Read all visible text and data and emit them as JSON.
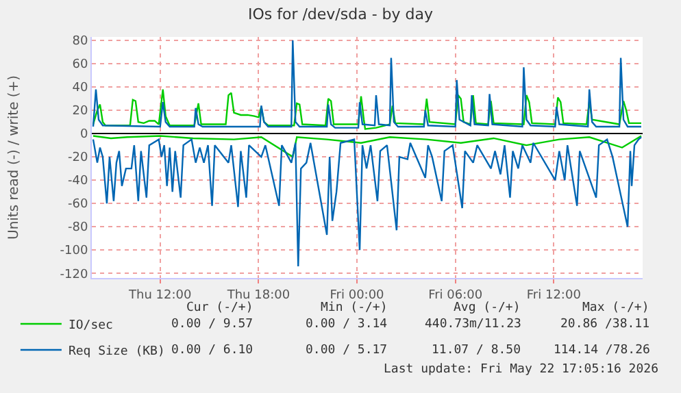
{
  "chart_data": {
    "type": "line",
    "title": "IOs for /dev/sda - by day",
    "ylabel": "Units read (-) / write (+)",
    "xlim": [
      "2026-05-21T07:50",
      "2026-05-22T17:25"
    ],
    "xticks": [
      {
        "value": "2026-05-21T12:00",
        "label": "Thu 12:00"
      },
      {
        "value": "2026-05-21T18:00",
        "label": "Thu 18:00"
      },
      {
        "value": "2026-05-22T00:00",
        "label": "Fri 00:00"
      },
      {
        "value": "2026-05-22T06:00",
        "label": "Fri 06:00"
      },
      {
        "value": "2026-05-22T12:00",
        "label": "Fri 12:00"
      }
    ],
    "ylim": [
      -124,
      83
    ],
    "yticks": [
      -120,
      -100,
      -80,
      -60,
      -40,
      -20,
      0,
      20,
      40,
      60,
      80
    ],
    "grid": true,
    "legend": "bottom left",
    "marker": "none",
    "line_style": "solid",
    "series": [
      {
        "name": "IO/sec",
        "color": "#00cc00",
        "x": [
          "2026-05-21T07:55",
          "2026-05-21T08:10",
          "2026-05-21T08:20",
          "2026-05-21T08:30",
          "2026-05-21T08:40",
          "2026-05-21T10:10",
          "2026-05-21T10:20",
          "2026-05-21T10:30",
          "2026-05-21T10:40",
          "2026-05-21T11:00",
          "2026-05-21T11:20",
          "2026-05-21T11:40",
          "2026-05-21T11:55",
          "2026-05-21T12:10",
          "2026-05-21T12:20",
          "2026-05-21T12:35",
          "2026-05-21T14:05",
          "2026-05-21T14:20",
          "2026-05-21T14:30",
          "2026-05-21T16:00",
          "2026-05-21T16:10",
          "2026-05-21T16:20",
          "2026-05-21T16:30",
          "2026-05-21T16:55",
          "2026-05-21T17:20",
          "2026-05-21T17:45",
          "2026-05-21T18:00",
          "2026-05-21T18:10",
          "2026-05-21T18:20",
          "2026-05-21T18:35",
          "2026-05-21T20:10",
          "2026-05-21T20:20",
          "2026-05-21T20:30",
          "2026-05-21T20:40",
          "2026-05-21T22:05",
          "2026-05-21T22:15",
          "2026-05-21T22:25",
          "2026-05-21T22:35",
          "2026-05-21T23:35",
          "2026-05-22T00:05",
          "2026-05-22T00:15",
          "2026-05-22T00:25",
          "2026-05-22T00:30",
          "2026-05-22T01:10",
          "2026-05-22T02:00",
          "2026-05-22T02:10",
          "2026-05-22T02:20",
          "2026-05-22T04:05",
          "2026-05-22T04:15",
          "2026-05-22T04:25",
          "2026-05-22T06:00",
          "2026-05-22T06:10",
          "2026-05-22T06:20",
          "2026-05-22T06:30",
          "2026-05-22T06:55",
          "2026-05-22T07:05",
          "2026-05-22T07:15",
          "2026-05-22T08:00",
          "2026-05-22T08:10",
          "2026-05-22T08:20",
          "2026-05-22T10:10",
          "2026-05-22T10:20",
          "2026-05-22T10:30",
          "2026-05-22T10:40",
          "2026-05-22T12:05",
          "2026-05-22T12:15",
          "2026-05-22T12:25",
          "2026-05-22T12:35",
          "2026-05-22T14:00",
          "2026-05-22T14:10",
          "2026-05-22T14:20",
          "2026-05-22T16:00",
          "2026-05-22T16:15",
          "2026-05-22T16:25",
          "2026-05-22T16:35",
          "2026-05-22T17:20"
        ],
        "values": [
          8,
          20,
          25,
          10,
          7,
          7,
          29,
          28,
          10,
          9,
          11,
          11,
          8,
          38,
          15,
          7,
          7,
          26,
          8,
          8,
          33,
          35,
          18,
          16,
          16,
          15,
          14,
          23,
          10,
          7,
          7,
          26,
          25,
          8,
          7,
          30,
          28,
          8,
          8,
          8,
          32,
          12,
          4,
          5,
          8,
          24,
          9,
          8,
          30,
          10,
          8,
          33,
          30,
          10,
          8,
          33,
          9,
          8,
          28,
          9,
          8,
          33,
          27,
          9,
          8,
          31,
          27,
          9,
          8,
          28,
          12,
          8,
          28,
          20,
          9,
          9
        ]
      },
      {
        "name": "Req Size (KB)",
        "color": "#0066b3",
        "x": [
          "2026-05-21T07:55",
          "2026-05-21T08:05",
          "2026-05-21T08:15",
          "2026-05-21T08:30",
          "2026-05-21T12:00",
          "2026-05-21T12:10",
          "2026-05-21T12:20",
          "2026-05-21T12:35",
          "2026-05-21T14:05",
          "2026-05-21T14:10",
          "2026-05-21T14:20",
          "2026-05-21T14:35",
          "2026-05-21T18:05",
          "2026-05-21T18:10",
          "2026-05-21T18:20",
          "2026-05-21T18:35",
          "2026-05-21T20:00",
          "2026-05-21T20:05",
          "2026-05-21T20:15",
          "2026-05-21T20:30",
          "2026-05-21T22:10",
          "2026-05-21T22:15",
          "2026-05-21T22:25",
          "2026-05-21T22:40",
          "2026-05-22T00:05",
          "2026-05-22T00:10",
          "2026-05-22T00:20",
          "2026-05-22T01:05",
          "2026-05-22T01:10",
          "2026-05-22T01:20",
          "2026-05-22T02:00",
          "2026-05-22T02:05",
          "2026-05-22T02:15",
          "2026-05-22T02:30",
          "2026-05-22T04:05",
          "2026-05-22T04:10",
          "2026-05-22T04:20",
          "2026-05-22T06:00",
          "2026-05-22T06:05",
          "2026-05-22T06:15",
          "2026-05-22T06:55",
          "2026-05-22T07:00",
          "2026-05-22T07:10",
          "2026-05-22T08:00",
          "2026-05-22T08:05",
          "2026-05-22T08:15",
          "2026-05-22T10:05",
          "2026-05-22T10:10",
          "2026-05-22T10:20",
          "2026-05-22T10:35",
          "2026-05-22T12:05",
          "2026-05-22T12:10",
          "2026-05-22T12:20",
          "2026-05-22T14:05",
          "2026-05-22T14:10",
          "2026-05-22T14:20",
          "2026-05-22T14:35",
          "2026-05-22T16:00",
          "2026-05-22T16:05",
          "2026-05-22T16:15",
          "2026-05-22T16:30",
          "2026-05-22T17:20"
        ],
        "values": [
          6,
          38,
          12,
          7,
          6,
          27,
          10,
          6,
          6,
          22,
          8,
          6,
          6,
          24,
          10,
          6,
          6,
          80,
          10,
          6,
          6,
          25,
          8,
          5,
          5,
          27,
          8,
          7,
          33,
          8,
          7,
          65,
          10,
          6,
          6,
          20,
          7,
          6,
          46,
          12,
          7,
          33,
          8,
          7,
          34,
          8,
          6,
          57,
          12,
          7,
          6,
          23,
          8,
          6,
          38,
          10,
          6,
          6,
          65,
          12,
          6,
          6
        ]
      },
      {
        "color": "#00cc00",
        "x": [
          "2026-05-21T07:55",
          "2026-05-21T09:00",
          "2026-05-21T10:00",
          "2026-05-21T12:00",
          "2026-05-21T14:00",
          "2026-05-21T16:30",
          "2026-05-21T18:10",
          "2026-05-21T20:05",
          "2026-05-21T20:20",
          "2026-05-21T22:10",
          "2026-05-22T00:15",
          "2026-05-22T02:00",
          "2026-05-22T04:15",
          "2026-05-22T06:20",
          "2026-05-22T08:20",
          "2026-05-22T10:20",
          "2026-05-22T12:20",
          "2026-05-22T14:10",
          "2026-05-22T16:10",
          "2026-05-22T17:20"
        ],
        "values": [
          -2,
          -4,
          -3,
          -2,
          -4,
          -5,
          -3,
          -20,
          -3,
          -5,
          -8,
          -3,
          -5,
          -8,
          -4,
          -10,
          -5,
          -3,
          -12,
          -2
        ]
      },
      {
        "color": "#0066b3",
        "x": [
          "2026-05-21T07:55",
          "2026-05-21T08:10",
          "2026-05-21T08:20",
          "2026-05-21T08:30",
          "2026-05-21T08:45",
          "2026-05-21T08:55",
          "2026-05-21T09:10",
          "2026-05-21T09:20",
          "2026-05-21T09:30",
          "2026-05-21T09:40",
          "2026-05-21T09:55",
          "2026-05-21T10:15",
          "2026-05-21T10:25",
          "2026-05-21T10:40",
          "2026-05-21T10:50",
          "2026-05-21T11:10",
          "2026-05-21T11:20",
          "2026-05-21T11:55",
          "2026-05-21T12:05",
          "2026-05-21T12:15",
          "2026-05-21T12:25",
          "2026-05-21T12:35",
          "2026-05-21T12:45",
          "2026-05-21T12:55",
          "2026-05-21T13:15",
          "2026-05-21T13:25",
          "2026-05-21T13:55",
          "2026-05-21T14:10",
          "2026-05-21T14:25",
          "2026-05-21T14:40",
          "2026-05-21T14:55",
          "2026-05-21T15:10",
          "2026-05-21T15:20",
          "2026-05-21T16:10",
          "2026-05-21T16:20",
          "2026-05-21T16:45",
          "2026-05-21T16:55",
          "2026-05-21T17:15",
          "2026-05-21T17:25",
          "2026-05-21T18:10",
          "2026-05-21T18:25",
          "2026-05-21T19:15",
          "2026-05-21T19:25",
          "2026-05-21T20:00",
          "2026-05-21T20:15",
          "2026-05-21T20:25",
          "2026-05-21T20:35",
          "2026-05-21T20:55",
          "2026-05-21T21:10",
          "2026-05-21T22:10",
          "2026-05-21T22:20",
          "2026-05-21T22:30",
          "2026-05-21T22:45",
          "2026-05-21T23:00",
          "2026-05-21T23:50",
          "2026-05-22T00:10",
          "2026-05-22T00:20",
          "2026-05-22T00:35",
          "2026-05-22T00:50",
          "2026-05-22T01:15",
          "2026-05-22T01:25",
          "2026-05-22T01:50",
          "2026-05-22T02:25",
          "2026-05-22T02:35",
          "2026-05-22T03:05",
          "2026-05-22T03:15",
          "2026-05-22T04:10",
          "2026-05-22T04:20",
          "2026-05-22T04:35",
          "2026-05-22T05:10",
          "2026-05-22T05:20",
          "2026-05-22T05:50",
          "2026-05-22T06:25",
          "2026-05-22T06:35",
          "2026-05-22T07:05",
          "2026-05-22T07:20",
          "2026-05-22T08:10",
          "2026-05-22T08:25",
          "2026-05-22T08:45",
          "2026-05-22T09:00",
          "2026-05-22T09:20",
          "2026-05-22T09:30",
          "2026-05-22T09:50",
          "2026-05-22T10:05",
          "2026-05-22T10:35",
          "2026-05-22T10:45",
          "2026-05-22T12:05",
          "2026-05-22T12:20",
          "2026-05-22T12:40",
          "2026-05-22T12:50",
          "2026-05-22T13:25",
          "2026-05-22T13:35",
          "2026-05-22T14:35",
          "2026-05-22T14:45",
          "2026-05-22T15:15",
          "2026-05-22T15:35",
          "2026-05-22T16:30",
          "2026-05-22T16:40",
          "2026-05-22T16:45",
          "2026-05-22T16:55",
          "2026-05-22T17:10",
          "2026-05-22T17:20"
        ],
        "values": [
          -5,
          -25,
          -12,
          -20,
          -60,
          -20,
          -58,
          -25,
          -15,
          -45,
          -30,
          -30,
          -10,
          -58,
          -15,
          -55,
          -10,
          -5,
          -20,
          -10,
          -45,
          -12,
          -50,
          -15,
          -55,
          -10,
          -5,
          -25,
          -12,
          -25,
          -10,
          -62,
          -10,
          -25,
          -10,
          -63,
          -15,
          -55,
          -10,
          -20,
          -10,
          -62,
          -10,
          -25,
          -8,
          -114,
          -30,
          -25,
          -8,
          -87,
          -20,
          -75,
          -50,
          -8,
          -5,
          -100,
          -10,
          -30,
          -10,
          -58,
          -15,
          -10,
          -83,
          -20,
          -22,
          -8,
          -38,
          -10,
          -20,
          -58,
          -15,
          -10,
          -64,
          -15,
          -25,
          -10,
          -30,
          -15,
          -35,
          -10,
          -55,
          -15,
          -30,
          -10,
          -25,
          -8,
          -40,
          -15,
          -40,
          -10,
          -62,
          -15,
          -55,
          -10,
          -5,
          -20,
          -80,
          -15,
          -45,
          -10,
          -5,
          -3
        ]
      }
    ],
    "annotations": [
      "Cur (-/+)",
      "Min (-/+)",
      "Avg (-/+)",
      "Max (-/+)",
      "0.00 / 9.57",
      "0.00 / 3.14",
      "440.73m/11.23",
      "20.86 /38.11",
      "0.00 / 6.10",
      "0.00 / 5.17",
      "11.07 / 8.50",
      "114.14 /78.26",
      "Last update: Fri May 22 17:05:16 2026"
    ]
  }
}
